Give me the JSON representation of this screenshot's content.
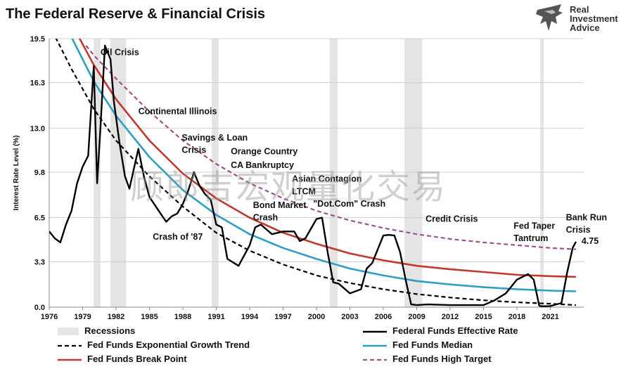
{
  "header": {
    "title": "The Federal Reserve & Financial Crisis"
  },
  "brand": {
    "line1": "Real",
    "line2": "Investment",
    "line3": "Advice"
  },
  "watermark": "顾郎吉宏观量化交易",
  "chart_data": {
    "type": "line",
    "title": "The Federal Reserve & Financial Crisis",
    "ylabel": "Interest Rate Level (%)",
    "xlabel": "",
    "xlim": [
      1976,
      2024
    ],
    "ylim": [
      0,
      19.5
    ],
    "y_ticks": [
      "0.0",
      "3.3",
      "6.5",
      "9.8",
      "13.0",
      "16.3",
      "19.5"
    ],
    "x_ticks": [
      "1976",
      "1979",
      "1982",
      "1985",
      "1988",
      "1991",
      "1994",
      "1997",
      "2000",
      "2003",
      "2006",
      "2009",
      "2012",
      "2015",
      "2018",
      "2021"
    ],
    "recessions": [
      [
        1980.0,
        1980.6
      ],
      [
        1981.5,
        1982.9
      ],
      [
        1990.6,
        1991.2
      ],
      [
        2001.2,
        2001.9
      ],
      [
        2007.9,
        2009.5
      ],
      [
        2020.1,
        2020.4
      ]
    ],
    "series": [
      {
        "name": "Federal Funds Effective Rate",
        "color": "#000000",
        "x": [
          1976,
          1976.5,
          1977,
          1977.5,
          1978,
          1978.5,
          1979,
          1979.5,
          1980,
          1980.3,
          1980.6,
          1981,
          1981.5,
          1981.8,
          1982.3,
          1982.8,
          1983.2,
          1984,
          1984.5,
          1985,
          1986,
          1986.5,
          1987,
          1987.5,
          1988,
          1988.5,
          1989,
          1989.5,
          1990,
          1990.5,
          1991,
          1991.5,
          1992,
          1993,
          1994,
          1994.5,
          1995,
          1996,
          1997,
          1998,
          1998.5,
          1999,
          2000,
          2000.5,
          2001,
          2001.5,
          2002,
          2003,
          2004,
          2004.5,
          2005,
          2006,
          2006.5,
          2007,
          2007.5,
          2008,
          2008.5,
          2009,
          2010,
          2012,
          2015,
          2016,
          2017,
          2018,
          2019,
          2019.5,
          2020,
          2020.3,
          2021,
          2022,
          2022.5,
          2023,
          2023.3
        ],
        "values": [
          5.5,
          5.0,
          4.7,
          6.0,
          7.0,
          9.0,
          10.2,
          11.0,
          17.5,
          9.0,
          13.0,
          19.0,
          18.0,
          15.0,
          12.0,
          9.5,
          8.6,
          11.5,
          9.5,
          8.0,
          6.8,
          6.2,
          6.6,
          6.8,
          7.5,
          8.5,
          9.8,
          8.8,
          8.2,
          7.8,
          6.0,
          5.8,
          3.5,
          3.0,
          4.5,
          5.8,
          6.0,
          5.3,
          5.5,
          5.5,
          4.8,
          5.0,
          6.4,
          6.5,
          4.0,
          1.8,
          1.7,
          1.0,
          1.3,
          2.8,
          3.2,
          5.2,
          5.25,
          5.2,
          4.0,
          2.0,
          0.2,
          0.15,
          0.2,
          0.15,
          0.15,
          0.5,
          1.0,
          2.0,
          2.4,
          2.0,
          0.1,
          0.06,
          0.08,
          0.3,
          2.5,
          4.3,
          4.75
        ]
      },
      {
        "name": "Fed Funds Exponential Growth Trend",
        "color": "#000000",
        "x": [
          1976,
          1978,
          1980,
          1982,
          1985,
          1988,
          1991,
          1994,
          1997,
          2000,
          2003,
          2006,
          2009,
          2012,
          2015,
          2018,
          2021,
          2023.3
        ],
        "values": [
          20.5,
          17.3,
          14.4,
          12.1,
          9.5,
          7.3,
          5.4,
          4.1,
          3.1,
          2.3,
          1.75,
          1.3,
          0.95,
          0.7,
          0.5,
          0.35,
          0.25,
          0.15
        ]
      },
      {
        "name": "Fed Funds Median",
        "color": "#2e9fc4",
        "x": [
          1976,
          1978,
          1980,
          1982,
          1985,
          1988,
          1991,
          1994,
          1997,
          2000,
          2003,
          2006,
          2009,
          2012,
          2015,
          2018,
          2021,
          2023.3
        ],
        "values": [
          23.5,
          19.6,
          16.4,
          13.9,
          10.9,
          8.5,
          6.7,
          5.3,
          4.3,
          3.5,
          2.8,
          2.3,
          1.9,
          1.65,
          1.45,
          1.3,
          1.2,
          1.15
        ]
      },
      {
        "name": "Fed Funds Break Point",
        "color": "#c0392b",
        "x": [
          1976,
          1978,
          1980,
          1982,
          1985,
          1988,
          1991,
          1994,
          1997,
          2000,
          2003,
          2006,
          2009,
          2012,
          2015,
          2018,
          2021,
          2023.3
        ],
        "values": [
          24.5,
          20.6,
          17.6,
          15.1,
          12.1,
          9.7,
          7.9,
          6.5,
          5.4,
          4.6,
          3.9,
          3.4,
          3.0,
          2.75,
          2.55,
          2.35,
          2.25,
          2.2
        ]
      },
      {
        "name": "Fed Funds High Target",
        "color": "#a0508e",
        "x": [
          1979.3,
          1980,
          1982,
          1985,
          1988,
          1991,
          1994,
          1997,
          2000,
          2003,
          2006,
          2009,
          2012,
          2015,
          2018,
          2021,
          2023.3
        ],
        "values": [
          19.0,
          18.3,
          16.6,
          14.2,
          12.1,
          10.4,
          9.0,
          7.9,
          7.0,
          6.3,
          5.75,
          5.3,
          4.95,
          4.7,
          4.5,
          4.3,
          4.2
        ]
      }
    ],
    "annotations": [
      {
        "text": "Oil Crisis",
        "x": 1980.6,
        "y": 18.3
      },
      {
        "text": "Continental Illinois",
        "x": 1984.0,
        "y": 14.0
      },
      {
        "text": "Savings & Loan",
        "x": 1987.9,
        "y": 12.1
      },
      {
        "text": "Crisis",
        "x": 1987.9,
        "y": 11.2
      },
      {
        "text": "Orange Country",
        "x": 1992.3,
        "y": 11.1
      },
      {
        "text": "CA Bankruptcy",
        "x": 1992.3,
        "y": 10.1
      },
      {
        "text": "Asian Contagion",
        "x": 1997.8,
        "y": 9.1
      },
      {
        "text": "LTCM",
        "x": 1997.8,
        "y": 8.2
      },
      {
        "text": "Bond Market",
        "x": 1994.3,
        "y": 7.2
      },
      {
        "text": "Crash",
        "x": 1994.3,
        "y": 6.3
      },
      {
        "text": "\"Dot.Com\" Crash",
        "x": 1999.7,
        "y": 7.3
      },
      {
        "text": "Crash of '87",
        "x": 1985.3,
        "y": 4.9
      },
      {
        "text": "Credit Crisis",
        "x": 2009.8,
        "y": 6.2
      },
      {
        "text": "Fed Taper",
        "x": 2017.7,
        "y": 5.7
      },
      {
        "text": "Tantrum",
        "x": 2017.7,
        "y": 4.8
      },
      {
        "text": "Bank Run",
        "x": 2022.4,
        "y": 6.3
      },
      {
        "text": "Crisis",
        "x": 2022.4,
        "y": 5.4
      },
      {
        "text": "4.75",
        "x": 2023.8,
        "y": 4.6
      }
    ],
    "legend": [
      {
        "label": "Recessions",
        "style": "band"
      },
      {
        "label": "Federal Funds Effective Rate",
        "style": "solid-black"
      },
      {
        "label": "Fed Funds Exponential Growth Trend",
        "style": "dashed-black"
      },
      {
        "label": "Fed Funds Median",
        "style": "solid-blue"
      },
      {
        "label": "Fed Funds Break Point",
        "style": "solid-red"
      },
      {
        "label": "Fed Funds High Target",
        "style": "dashed-purple"
      }
    ]
  }
}
